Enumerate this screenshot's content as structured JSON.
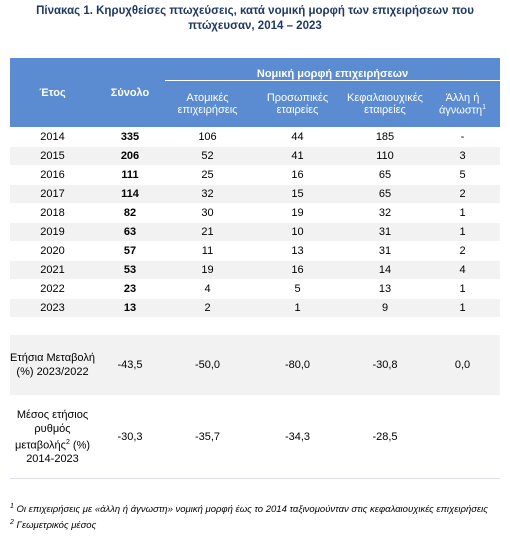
{
  "title": "Πίνακας 1. Κηρυχθείσες πτωχεύσεις, κατά νομική μορφή των επιχειρήσεων που πτώχευσαν, 2014 – 2023",
  "table": {
    "group_header": "Νομική μορφή επιχειρήσεων",
    "headers": [
      {
        "text": "Έτος"
      },
      {
        "text": "Σύνολο"
      },
      {
        "text": "Ατομικές επιχειρήσεις"
      },
      {
        "text": "Προσωπικές εταιρείες"
      },
      {
        "text": "Κεφαλαιουχικές εταιρείες"
      },
      {
        "text": "Άλλη ή άγνωστη",
        "note": "1"
      }
    ],
    "rows": [
      [
        "2014",
        "335",
        "106",
        "44",
        "185",
        "-"
      ],
      [
        "2015",
        "206",
        "52",
        "41",
        "110",
        "3"
      ],
      [
        "2016",
        "111",
        "25",
        "16",
        "65",
        "5"
      ],
      [
        "2017",
        "114",
        "32",
        "15",
        "65",
        "2"
      ],
      [
        "2018",
        "82",
        "30",
        "19",
        "32",
        "1"
      ],
      [
        "2019",
        "63",
        "21",
        "10",
        "31",
        "1"
      ],
      [
        "2020",
        "57",
        "11",
        "13",
        "31",
        "2"
      ],
      [
        "2021",
        "53",
        "19",
        "16",
        "14",
        "4"
      ],
      [
        "2022",
        "23",
        "4",
        "5",
        "13",
        "1"
      ],
      [
        "2023",
        "13",
        "2",
        "1",
        "9",
        "1"
      ]
    ],
    "summary": [
      {
        "label": "Ετήσια Μεταβολή (%) 2023/2022",
        "values": [
          "-43,5",
          "-50,0",
          "-80,0",
          "-30,8",
          "0,0"
        ]
      },
      {
        "label": "Μέσος ετήσιος ρυθμός μεταβολής",
        "note": "2",
        "label_end": "(%) 2014-2023",
        "values": [
          "-30,3",
          "-35,7",
          "-34,3",
          "-28,5"
        ]
      }
    ]
  },
  "footnotes": [
    {
      "mark": "1",
      "text": "Οι επιχειρήσεις με «άλλη ή άγνωστη» νομική μορφή έως το 2014 ταξινομούνταν στις κεφαλαιουχικές επιχειρήσεις"
    },
    {
      "mark": "2",
      "text": "Γεωμετρικός μέσος"
    }
  ]
}
